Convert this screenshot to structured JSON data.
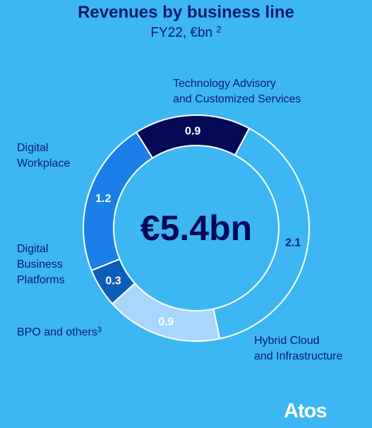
{
  "chart_data": {
    "type": "pie",
    "title": "Revenues by business line",
    "subtitle": "FY22, €bn",
    "subtitle_note": "2",
    "center_label": "€5.4bn",
    "slices": [
      {
        "name": "Technology Advisory and Customized Services",
        "value": 0.9,
        "value_label": "0.9",
        "color": "#040a58",
        "label_color": "#ffffff"
      },
      {
        "name": "Hybrid Cloud and Infrastructure",
        "value": 2.1,
        "value_label": "2.1",
        "color": "#3cb7f3",
        "label_color": "#0a1a6b"
      },
      {
        "name": "BPO and others",
        "value": 0.9,
        "value_label": "0.9",
        "color": "#a8d6ff",
        "label_color": "#ffffff"
      },
      {
        "name": "Digital Business Platforms",
        "value": 0.3,
        "value_label": "0.3",
        "color": "#0a5db8",
        "label_color": "#ffffff"
      },
      {
        "name": "Digital Workplace",
        "value": 1.2,
        "value_label": "1.2",
        "color": "#1a7fe8",
        "label_color": "#ffffff"
      }
    ]
  },
  "labels": {
    "technology_advisory": [
      "Technology Advisory",
      "and Customized Services"
    ],
    "hybrid_cloud": [
      "Hybrid Cloud",
      "and Infrastructure"
    ],
    "bpo_text": "BPO and others",
    "bpo_note": "3",
    "digital_business": [
      "Digital",
      "Business",
      "Platforms"
    ],
    "digital_workplace": [
      "Digital",
      "Workplace"
    ]
  },
  "logo": {
    "text": "Atos"
  }
}
